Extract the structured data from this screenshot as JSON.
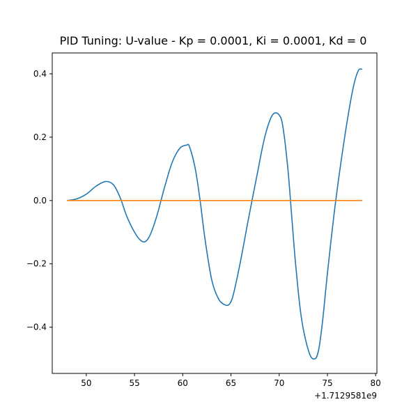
{
  "chart_data": {
    "type": "line",
    "title": "PID Tuning: U-value - Kp = 0.0001, Ki = 0.0001, Kd = 0",
    "xlabel": "",
    "ylabel": "",
    "x_offset_label": "+1.7129581e9",
    "xlim": [
      46.47,
      80.13
    ],
    "ylim": [
      -0.546,
      0.466
    ],
    "x_ticks": [
      50,
      55,
      60,
      65,
      70,
      75,
      80
    ],
    "x_tick_labels": [
      "50",
      "55",
      "60",
      "65",
      "70",
      "75",
      "80"
    ],
    "y_ticks": [
      -0.4,
      -0.2,
      0.0,
      0.2,
      0.4
    ],
    "y_tick_labels": [
      "−0.4",
      "−0.2",
      "0.0",
      "0.2",
      "0.4"
    ],
    "grid": false,
    "legend": "none",
    "series": [
      {
        "color": "#1f77b4",
        "x": [
          48.0,
          49.0,
          50.0,
          51.0,
          52.0,
          52.8,
          53.5,
          54.2,
          55.0,
          55.6,
          56.1,
          56.6,
          57.3,
          58.1,
          58.9,
          59.7,
          60.4,
          60.7,
          61.3,
          61.8,
          62.3,
          63.0,
          63.7,
          64.4,
          64.9,
          65.3,
          66.0,
          66.8,
          67.7,
          68.5,
          69.3,
          70.0,
          70.4,
          70.9,
          71.3,
          71.7,
          72.3,
          73.1,
          73.7,
          74.1,
          74.5,
          75.0,
          75.7,
          76.4,
          77.1,
          77.7,
          78.2,
          78.6
        ],
        "y": [
          0.0,
          0.005,
          0.02,
          0.045,
          0.06,
          0.05,
          0.01,
          -0.05,
          -0.1,
          -0.125,
          -0.13,
          -0.11,
          -0.05,
          0.04,
          0.12,
          0.165,
          0.175,
          0.17,
          0.1,
          0.0,
          -0.12,
          -0.25,
          -0.31,
          -0.33,
          -0.325,
          -0.29,
          -0.19,
          -0.06,
          0.08,
          0.2,
          0.27,
          0.27,
          0.23,
          0.1,
          -0.05,
          -0.2,
          -0.37,
          -0.48,
          -0.5,
          -0.47,
          -0.38,
          -0.23,
          -0.04,
          0.12,
          0.26,
          0.36,
          0.41,
          0.415
        ]
      },
      {
        "color": "#ff7f0e",
        "x": [
          48.0,
          78.6
        ],
        "y": [
          0.0,
          0.0
        ]
      }
    ]
  }
}
